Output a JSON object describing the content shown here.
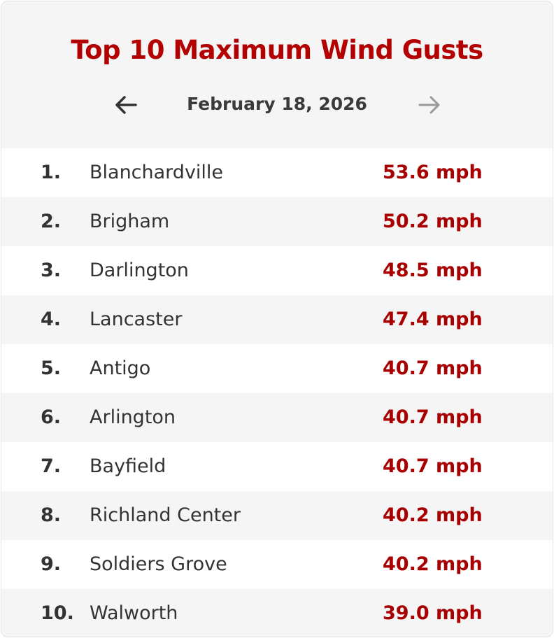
{
  "header": {
    "title": "Top 10 Maximum Wind Gusts",
    "date": "February 18, 2026"
  },
  "table": {
    "rows": [
      [
        "1.",
        "Blanchardville",
        "53.6 mph"
      ],
      [
        "2.",
        "Brigham",
        "50.2 mph"
      ],
      [
        "3.",
        "Darlington",
        "48.5 mph"
      ],
      [
        "4.",
        "Lancaster",
        "47.4 mph"
      ],
      [
        "5.",
        "Antigo",
        "40.7 mph"
      ],
      [
        "6.",
        "Arlington",
        "40.7 mph"
      ],
      [
        "7.",
        "Bayfield",
        "40.7 mph"
      ],
      [
        "8.",
        "Richland Center",
        "40.2 mph"
      ],
      [
        "9.",
        "Soldiers Grove",
        "40.2 mph"
      ],
      [
        "10.",
        "Walworth",
        "39.0 mph"
      ]
    ]
  }
}
